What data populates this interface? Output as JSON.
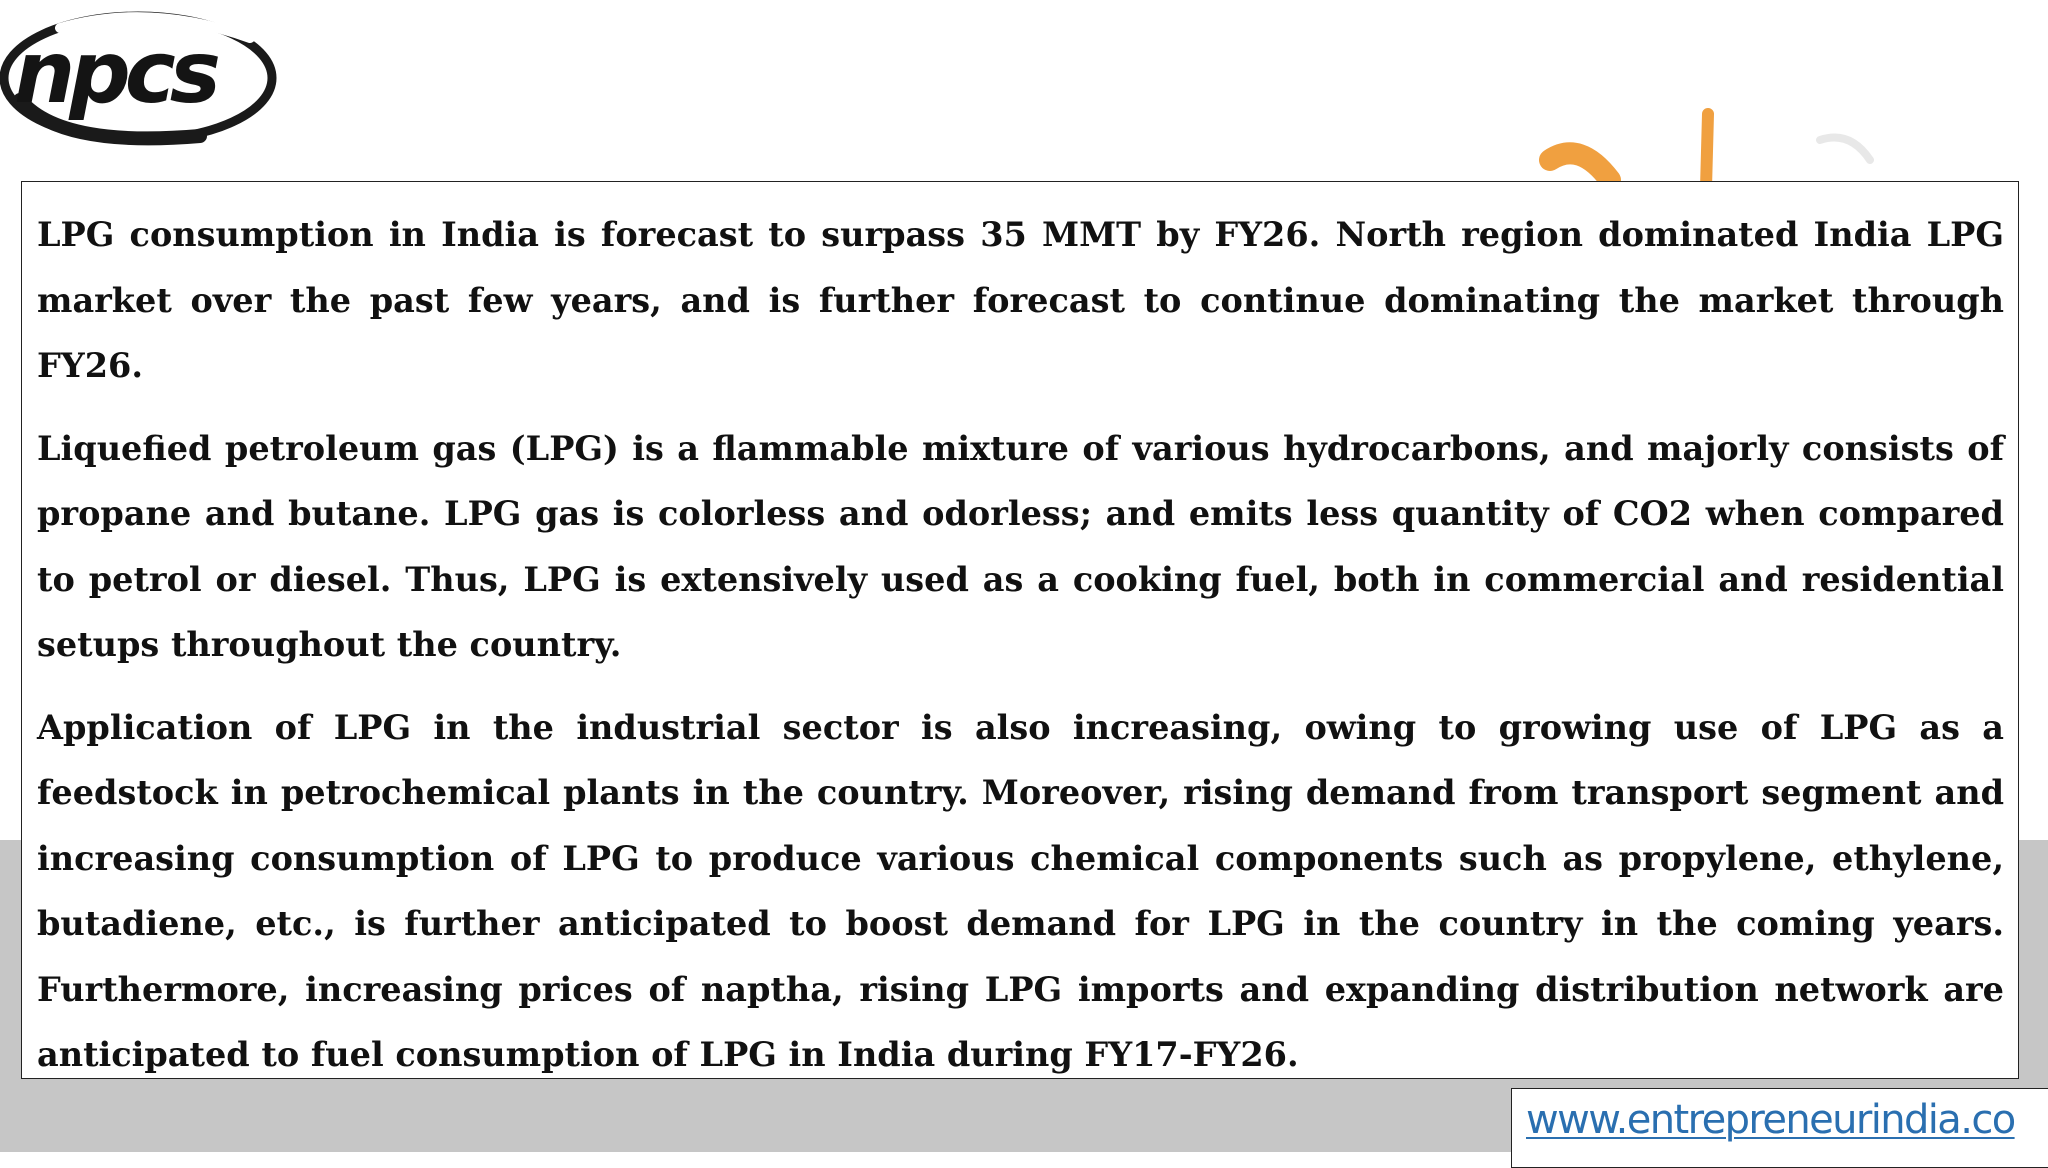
{
  "logo": {
    "text": "npcs",
    "icon": "npcs-logo-icon"
  },
  "paragraphs": [
    "LPG consumption in India is forecast to surpass 35 MMT by FY26. North region dominated India LPG market over the past few years, and is further forecast to continue dominating the market through FY26.",
    "Liquefied petroleum gas (LPG) is a flammable mixture of various hydrocarbons, and majorly consists of propane and butane. LPG gas is colorless and odorless; and emits less quantity of CO2 when compared to petrol or diesel. Thus, LPG is extensively used as a cooking fuel, both in commercial and residential setups throughout the country.",
    "Application of LPG in the industrial sector is also increasing, owing to growing use of LPG as a feedstock in petrochemical plants in the country. Moreover, rising demand from transport segment and increasing consumption of LPG to produce various chemical components such as propylene, ethylene, butadiene, etc., is further anticipated to boost demand for LPG in the country in the coming years. Furthermore, increasing prices of naptha, rising LPG imports and expanding distribution network are anticipated to fuel consumption of LPG in India during FY17-FY26."
  ],
  "footer": {
    "url": "www.entrepreneurindia.co"
  },
  "colors": {
    "link": "#2a6fb0",
    "band": "#c6c6c6",
    "accent_orange": "#f0a040"
  }
}
